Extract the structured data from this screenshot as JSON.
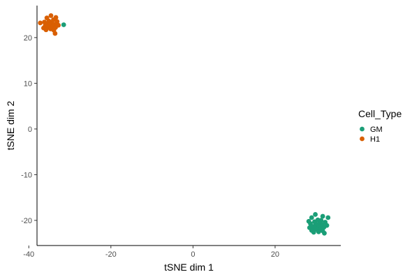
{
  "chart_data": {
    "type": "scatter",
    "xlabel": "tSNE dim 1",
    "ylabel": "tSNE dim 2",
    "xlim": [
      -38,
      36
    ],
    "ylim": [
      -25.5,
      27
    ],
    "x_ticks": [
      -40,
      -20,
      0,
      20
    ],
    "y_ticks": [
      -20,
      -10,
      0,
      10,
      20
    ],
    "grid": false,
    "legend": {
      "title": "Cell_Type",
      "placement": "right"
    },
    "series": [
      {
        "name": "GM",
        "color": "#1b9e77",
        "points": [
          [
            -31.5,
            22.8
          ],
          [
            29.8,
            -18.7
          ],
          [
            31.6,
            -19.1
          ],
          [
            28.9,
            -19.4
          ],
          [
            32.9,
            -19.4
          ],
          [
            30.4,
            -19.9
          ],
          [
            31.2,
            -20.0
          ],
          [
            28.2,
            -20.2
          ],
          [
            29.6,
            -20.3
          ],
          [
            32.2,
            -20.4
          ],
          [
            30.9,
            -20.5
          ],
          [
            28.6,
            -20.7
          ],
          [
            29.9,
            -20.8
          ],
          [
            31.5,
            -20.9
          ],
          [
            30.3,
            -21.0
          ],
          [
            32.6,
            -21.1
          ],
          [
            29.1,
            -21.3
          ],
          [
            30.7,
            -21.3
          ],
          [
            31.9,
            -21.5
          ],
          [
            28.4,
            -21.6
          ],
          [
            29.7,
            -21.7
          ],
          [
            31.1,
            -21.8
          ],
          [
            30.2,
            -22.0
          ],
          [
            28.9,
            -22.2
          ],
          [
            31.6,
            -22.3
          ],
          [
            30.6,
            -22.5
          ],
          [
            29.4,
            -22.6
          ],
          [
            32.0,
            -22.8
          ]
        ]
      },
      {
        "name": "H1",
        "color": "#d95f02",
        "points": [
          [
            -34.6,
            24.8
          ],
          [
            -33.4,
            24.4
          ],
          [
            -35.6,
            24.3
          ],
          [
            -34.0,
            23.9
          ],
          [
            -35.1,
            23.6
          ],
          [
            -33.1,
            23.5
          ],
          [
            -36.2,
            23.4
          ],
          [
            -34.5,
            23.3
          ],
          [
            -37.2,
            23.2
          ],
          [
            -35.7,
            23.0
          ],
          [
            -33.7,
            22.9
          ],
          [
            -34.9,
            22.8
          ],
          [
            -32.8,
            22.7
          ],
          [
            -36.0,
            22.6
          ],
          [
            -34.2,
            22.4
          ],
          [
            -35.4,
            22.3
          ],
          [
            -33.5,
            22.2
          ],
          [
            -36.4,
            22.1
          ],
          [
            -34.7,
            21.9
          ],
          [
            -35.8,
            21.7
          ],
          [
            -33.9,
            21.6
          ],
          [
            -33.6,
            20.9
          ]
        ]
      }
    ]
  }
}
